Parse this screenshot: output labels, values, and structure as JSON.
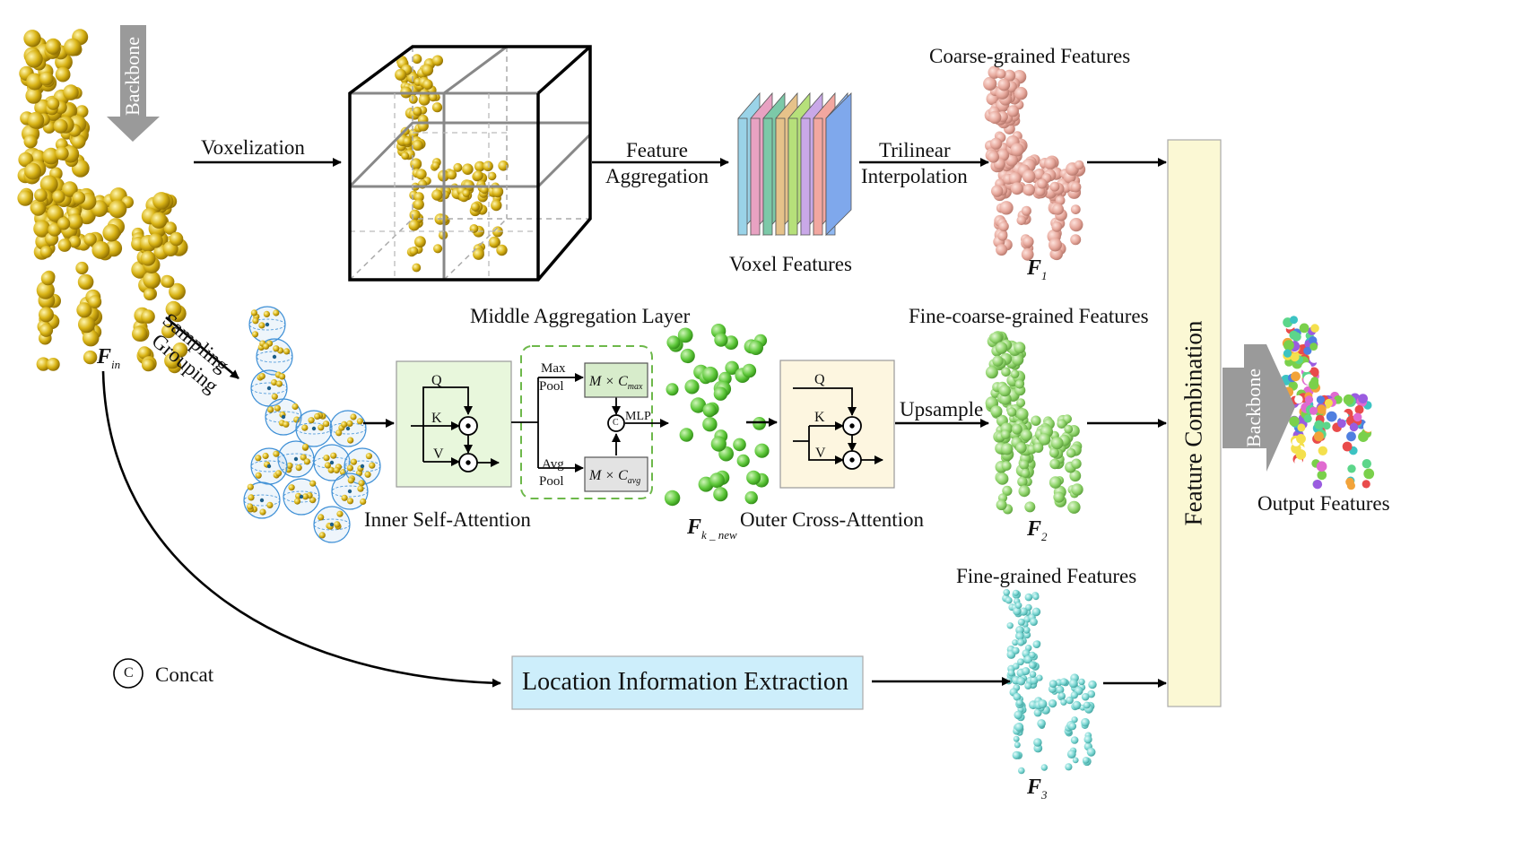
{
  "colors": {
    "yellow_points": "#d9b416",
    "pink_points": "#e6a79b",
    "green_points": "#8fd46a",
    "bright_green_points": "#5ec83a",
    "cyan_points": "#79d6d2",
    "backbone_arrow": "#9a9a9a",
    "inner_attention_bg": "#e8f7dc",
    "cross_attention_bg": "#fdf6e0",
    "location_bg": "#cdeefb",
    "combination_bg": "#fbf8d4",
    "mag_dashed_border": "#6db84a"
  },
  "labels": {
    "backbone_left": "Backbone",
    "backbone_right": "Backbone",
    "voxelization": "Voxelization",
    "feature": "Feature",
    "aggregation": "Aggregation",
    "trilinear": "Trilinear",
    "interpolation": "Interpolation",
    "voxel_features": "Voxel Features",
    "coarse_features": "Coarse-grained Features",
    "fine_coarse_features": "Fine-coarse-grained Features",
    "fine_features": "Fine-grained Features",
    "middle_layer": "Middle Aggregation Layer",
    "sampling": "Sampling",
    "grouping": "Grouping",
    "inner_attention": "Inner Self-Attention",
    "outer_attention": "Outer Cross-Attention",
    "upsample": "Upsample",
    "concat": "Concat",
    "location": "Location Information Extraction",
    "combination": "Feature Combination",
    "output": "Output Features",
    "q": "Q",
    "k": "K",
    "v": "V",
    "max": "Max",
    "avg": "Avg",
    "pool": "Pool",
    "mlp": "MLP",
    "c": "C",
    "m_times_c": "M × C",
    "sub_max": "max",
    "sub_avg": "avg"
  },
  "symbols": {
    "f": "F",
    "f_in_sub": "in",
    "f1_sub": "1",
    "f2_sub": "2",
    "f3_sub": "3",
    "fk_sub": "k _ new"
  }
}
